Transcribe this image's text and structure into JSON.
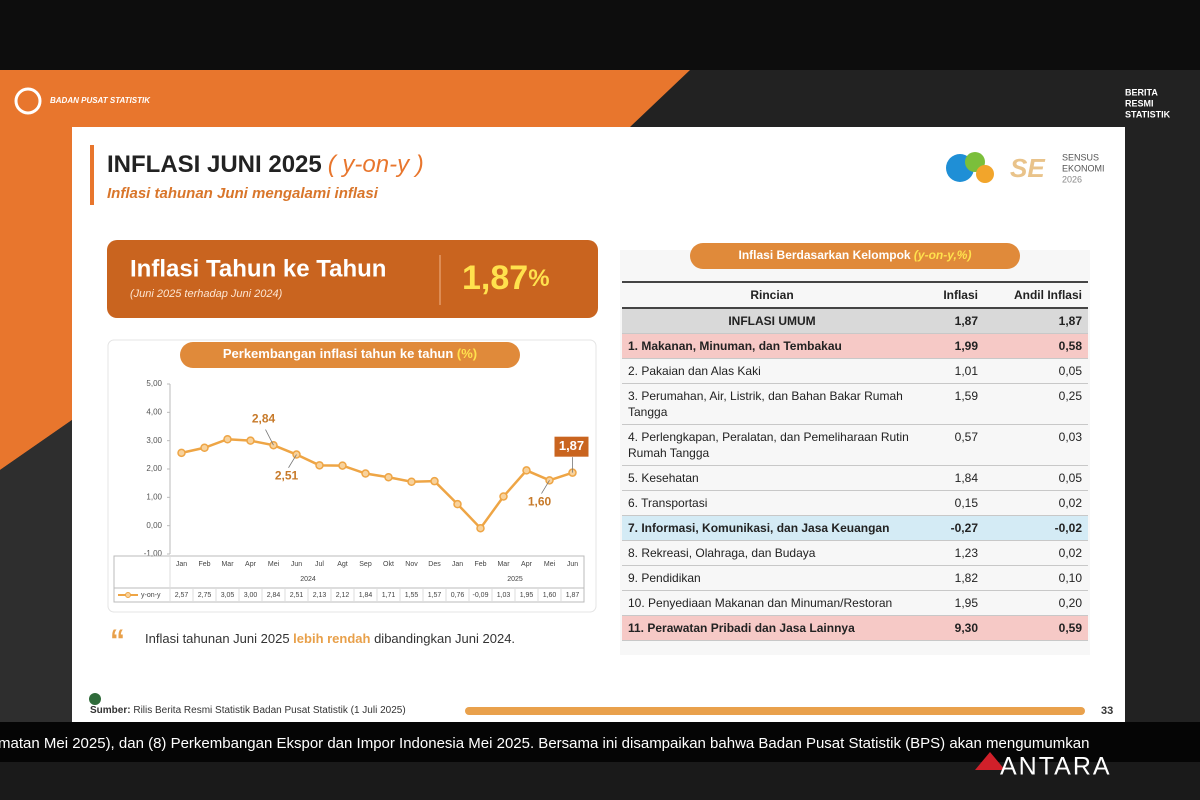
{
  "broadcast": {
    "org": "BADAN PUSAT STATISTIK",
    "brs": [
      "BERITA",
      "RESMI",
      "STATISTIK"
    ],
    "ticker": "matan Mei 2025), dan (8) Perkembangan Ekspor dan Impor Indonesia Mei 2025. Bersama ini disampaikan bahwa Badan Pusat Statistik (BPS) akan mengumumkan",
    "agency": "ANTARA"
  },
  "header": {
    "title": "INFLASI JUNI 2025",
    "title_tag": "( y-on-y )",
    "subtitle": "Inflasi tahunan Juni mengalami inflasi",
    "logo_text": [
      "SENSUS",
      "EKONOMI",
      "2026"
    ]
  },
  "headline": {
    "label": "Inflasi Tahun ke Tahun",
    "note": "(Juni 2025 terhadap Juni 2024)",
    "value": "1,87",
    "unit": "%"
  },
  "chart_data": {
    "type": "line",
    "title": "Perkembangan inflasi tahun ke tahun ",
    "title_unit": "(%)",
    "categories": [
      "Jan",
      "Feb",
      "Mar",
      "Apr",
      "Mei",
      "Jun",
      "Jul",
      "Agt",
      "Sep",
      "Okt",
      "Nov",
      "Des",
      "Jan",
      "Feb",
      "Mar",
      "Apr",
      "Mei",
      "Jun"
    ],
    "groups": [
      {
        "label": "2024",
        "size": 12
      },
      {
        "label": "2025",
        "size": 6
      }
    ],
    "series": [
      {
        "name": "y-on-y",
        "color": "#eea545",
        "values": [
          2.57,
          2.75,
          3.05,
          3.0,
          2.84,
          2.51,
          2.13,
          2.12,
          1.84,
          1.71,
          1.55,
          1.57,
          0.76,
          -0.09,
          1.03,
          1.95,
          1.6,
          1.87
        ],
        "value_labels": [
          "2,57",
          "2,75",
          "3,05",
          "3,00",
          "2,84",
          "2,51",
          "2,13",
          "2,12",
          "1,84",
          "1,71",
          "1,55",
          "1,57",
          "0,76",
          "-0,09",
          "1,03",
          "1,95",
          "1,60",
          "1,87"
        ]
      }
    ],
    "annotations": [
      {
        "point": 4,
        "label": "2,84"
      },
      {
        "point": 5,
        "label": "2,51"
      },
      {
        "point": 16,
        "label": "1,60"
      },
      {
        "point": 17,
        "label": "1,87"
      }
    ],
    "ylim": [
      -1,
      5
    ],
    "yticks": [
      {
        "value": -1,
        "label": "-1,00"
      },
      {
        "value": 0,
        "label": "0,00"
      },
      {
        "value": 1,
        "label": "1,00"
      },
      {
        "value": 2,
        "label": "2,00"
      },
      {
        "value": 3,
        "label": "3,00"
      },
      {
        "value": 4,
        "label": "4,00"
      },
      {
        "value": 5,
        "label": "5,00"
      }
    ],
    "grid": false
  },
  "quote": {
    "before": "Inflasi tahunan Juni 2025 ",
    "emphasis": "lebih rendah",
    "after": " dibandingkan Juni 2024."
  },
  "table": {
    "title": "Inflasi Berdasarkan Kelompok ",
    "title_tag": "(y-on-y,%)",
    "columns": [
      "Rincian",
      "Inflasi",
      "Andil Inflasi"
    ],
    "rows": [
      {
        "cells": [
          "INFLASI UMUM",
          "1,87",
          "1,87"
        ],
        "style": "total"
      },
      {
        "cells": [
          "1. Makanan, Minuman, dan Tembakau",
          "1,99",
          "0,58"
        ],
        "style": "high"
      },
      {
        "cells": [
          "2. Pakaian dan Alas Kaki",
          "1,01",
          "0,05"
        ]
      },
      {
        "cells": [
          "3. Perumahan, Air, Listrik, dan Bahan Bakar Rumah Tangga",
          "1,59",
          "0,25"
        ]
      },
      {
        "cells": [
          "4. Perlengkapan, Peralatan, dan Pemeliharaan Rutin Rumah Tangga",
          "0,57",
          "0,03"
        ]
      },
      {
        "cells": [
          "5. Kesehatan",
          "1,84",
          "0,05"
        ]
      },
      {
        "cells": [
          "6. Transportasi",
          "0,15",
          "0,02"
        ]
      },
      {
        "cells": [
          "7. Informasi, Komunikasi, dan Jasa Keuangan",
          "-0,27",
          "-0,02"
        ],
        "style": "low"
      },
      {
        "cells": [
          "8. Rekreasi, Olahraga, dan Budaya",
          "1,23",
          "0,02"
        ]
      },
      {
        "cells": [
          "9. Pendidikan",
          "1,82",
          "0,10"
        ]
      },
      {
        "cells": [
          "10. Penyediaan Makanan dan Minuman/Restoran",
          "1,95",
          "0,20"
        ]
      },
      {
        "cells": [
          "11. Perawatan Pribadi dan Jasa Lainnya",
          "9,30",
          "0,59"
        ],
        "style": "high"
      }
    ]
  },
  "footer": {
    "source_label": "Sumber:",
    "source": " Rilis Berita Resmi Statistik Badan Pusat Statistik (1 Juli 2025)",
    "page": "33"
  }
}
